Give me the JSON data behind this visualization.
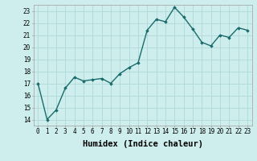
{
  "x": [
    0,
    1,
    2,
    3,
    4,
    5,
    6,
    7,
    8,
    9,
    10,
    11,
    12,
    13,
    14,
    15,
    16,
    17,
    18,
    19,
    20,
    21,
    22,
    23
  ],
  "y": [
    17.0,
    14.0,
    14.8,
    16.6,
    17.5,
    17.2,
    17.3,
    17.4,
    17.0,
    17.8,
    18.3,
    18.7,
    21.4,
    22.3,
    22.1,
    23.3,
    22.5,
    21.5,
    20.4,
    20.1,
    21.0,
    20.8,
    21.6,
    21.4
  ],
  "line_color": "#1a6b6b",
  "marker": "D",
  "marker_size": 1.8,
  "bg_color": "#ceeeed",
  "grid_color": "#b0d8d8",
  "xlabel": "Humidex (Indice chaleur)",
  "xlim": [
    -0.5,
    23.5
  ],
  "ylim": [
    13.5,
    23.5
  ],
  "yticks": [
    14,
    15,
    16,
    17,
    18,
    19,
    20,
    21,
    22,
    23
  ],
  "xticks": [
    0,
    1,
    2,
    3,
    4,
    5,
    6,
    7,
    8,
    9,
    10,
    11,
    12,
    13,
    14,
    15,
    16,
    17,
    18,
    19,
    20,
    21,
    22,
    23
  ],
  "tick_label_fontsize": 5.5,
  "xlabel_fontsize": 7.5,
  "linewidth": 1.0
}
